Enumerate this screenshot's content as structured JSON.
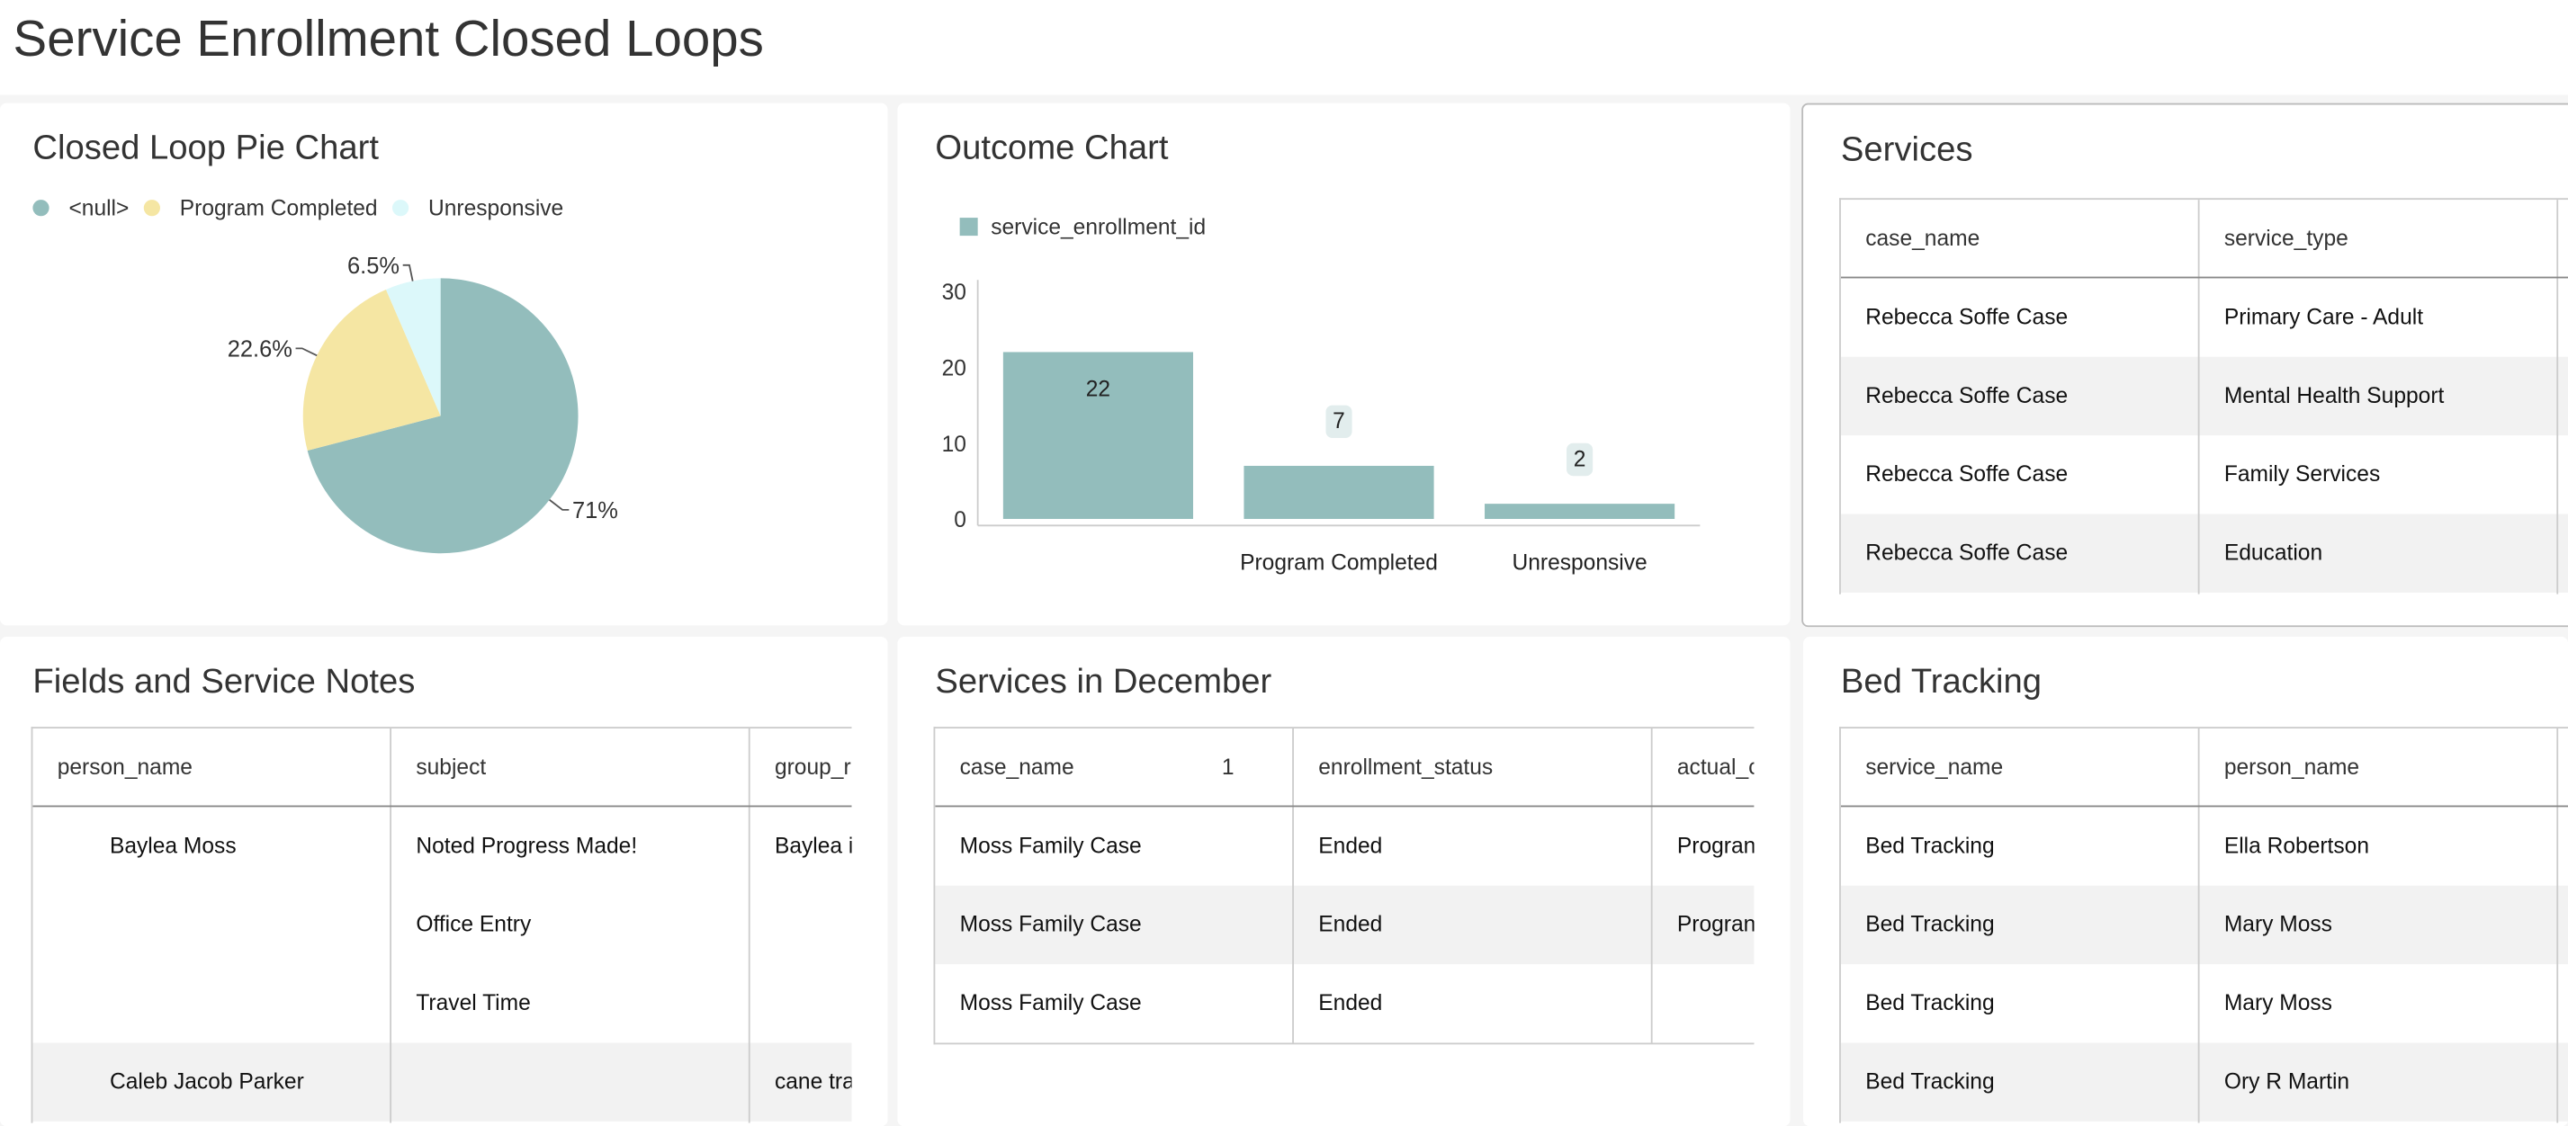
{
  "header": {
    "title": "Service Enrollment Closed Loops"
  },
  "chart_data": [
    {
      "type": "pie",
      "title": "Closed Loop Pie Chart",
      "categories": [
        "<null>",
        "Program Completed",
        "Unresponsive"
      ],
      "values": [
        71,
        22.6,
        6.5
      ],
      "value_labels": [
        "71%",
        "22.6%",
        "6.5%"
      ],
      "colors": [
        "#93bdbc",
        "#f5e6a3",
        "#dcf8fa"
      ]
    },
    {
      "type": "bar",
      "title": "Outcome Chart",
      "categories": [
        null,
        "Program Completed",
        "Unresponsive"
      ],
      "series": [
        {
          "name": "service_enrollment_id",
          "color": "#93bdbc",
          "values": [
            22,
            7,
            2
          ]
        }
      ],
      "ylim": [
        0,
        30
      ],
      "yticks": [
        0,
        10,
        20,
        30
      ]
    }
  ],
  "tables": [
    {
      "title": "Services",
      "columns": [
        "case_name",
        "service_type"
      ],
      "rows": [
        [
          "Rebecca Soffe Case",
          "Primary Care - Adult"
        ],
        [
          "Rebecca Soffe Case",
          "Mental Health Support"
        ],
        [
          "Rebecca Soffe Case",
          "Family Services"
        ],
        [
          "Rebecca Soffe Case",
          "Education"
        ]
      ]
    },
    {
      "title": "Fields and Service Notes",
      "columns": [
        "person_name",
        "subject",
        "group_r"
      ],
      "rows": [
        [
          "Baylea Moss",
          "Noted Progress Made!",
          "Baylea i"
        ],
        [
          null,
          "Office Entry",
          null
        ],
        [
          null,
          "Travel Time",
          null
        ],
        [
          "Caleb Jacob Parker",
          null,
          "cane tra"
        ]
      ]
    },
    {
      "title": "Services in December",
      "columns": [
        "case_name",
        "enrollment_status",
        "actual_c"
      ],
      "sort_rank": 1,
      "rows": [
        [
          "Moss Family Case",
          "Ended",
          "Progran"
        ],
        [
          "Moss Family Case",
          "Ended",
          "Progran"
        ],
        [
          "Moss Family Case",
          "Ended",
          null
        ]
      ]
    },
    {
      "title": "Bed Tracking",
      "columns": [
        "service_name",
        "person_name"
      ],
      "rows": [
        [
          "Bed Tracking",
          "Ella Robertson"
        ],
        [
          "Bed Tracking",
          "Mary Moss"
        ],
        [
          "Bed Tracking",
          "Mary Moss"
        ],
        [
          "Bed Tracking",
          "Ory R Martin"
        ]
      ]
    }
  ]
}
